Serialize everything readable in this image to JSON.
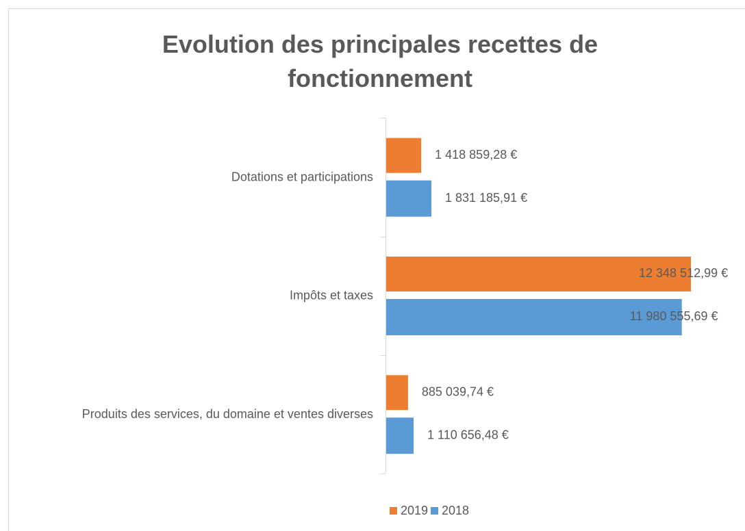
{
  "chart_data": {
    "type": "hbar",
    "title": "Evolution des principales recettes de fonctionnement",
    "categories": [
      "Dotations et participations",
      "Impôts et taxes",
      "Produits des services, du domaine et ventes diverses"
    ],
    "series": [
      {
        "name": "2019",
        "color": "#ed7d31",
        "values": [
          1418859.28,
          12348512.99,
          885039.74
        ],
        "value_labels": [
          "1 418 859,28 €",
          "12 348 512,99 €",
          "885 039,74 €"
        ]
      },
      {
        "name": "2018",
        "color": "#5b9bd5",
        "values": [
          1831185.91,
          11980555.69,
          1110656.48
        ],
        "value_labels": [
          "1 831 185,91 €",
          "11 980 555,69 €",
          "1 110 656,48 €"
        ]
      }
    ],
    "legend": "bottom"
  }
}
